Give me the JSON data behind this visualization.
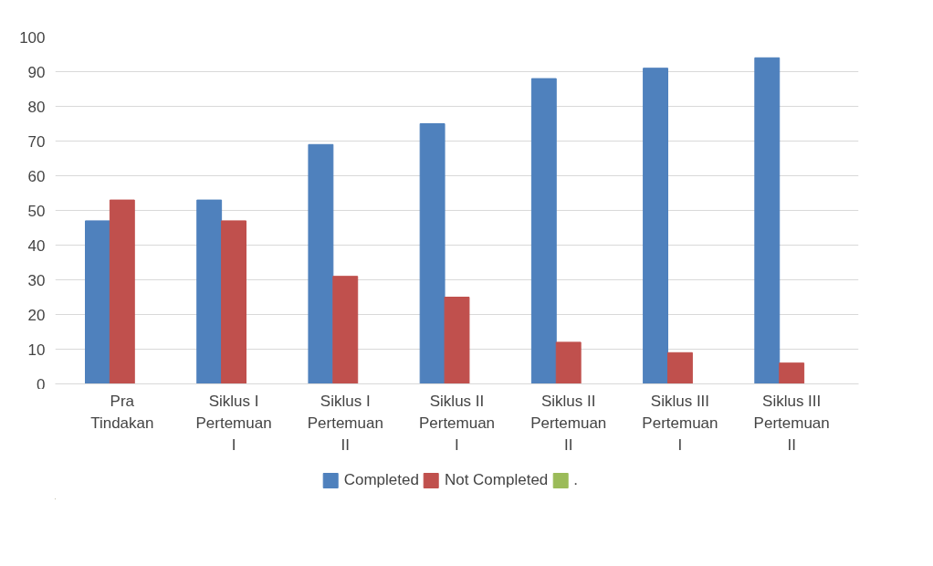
{
  "chart_data": {
    "type": "bar",
    "categories": [
      "Pra Tindakan",
      "Siklus I Pertemuan I",
      "Siklus I Pertemuan II",
      "Siklus II Pertemuan I",
      "Siklus II Pertemuan II",
      "Siklus III Pertemuan I",
      "Siklus III Pertemuan II"
    ],
    "series": [
      {
        "name": "Completed",
        "color": "#4f81bd",
        "values": [
          47,
          53,
          69,
          75,
          88,
          91,
          94
        ]
      },
      {
        "name": "Not Completed",
        "color": "#c0504d",
        "values": [
          53,
          47,
          31,
          25,
          12,
          9,
          6
        ]
      },
      {
        "name": ".",
        "color": "#9bbb59",
        "values": [
          null,
          null,
          null,
          null,
          null,
          null,
          null
        ]
      }
    ],
    "ylim": [
      0,
      100
    ],
    "yticks": [
      0,
      10,
      20,
      30,
      40,
      50,
      60,
      70,
      80,
      90,
      100
    ],
    "grid": "y",
    "legend": "bottom"
  }
}
